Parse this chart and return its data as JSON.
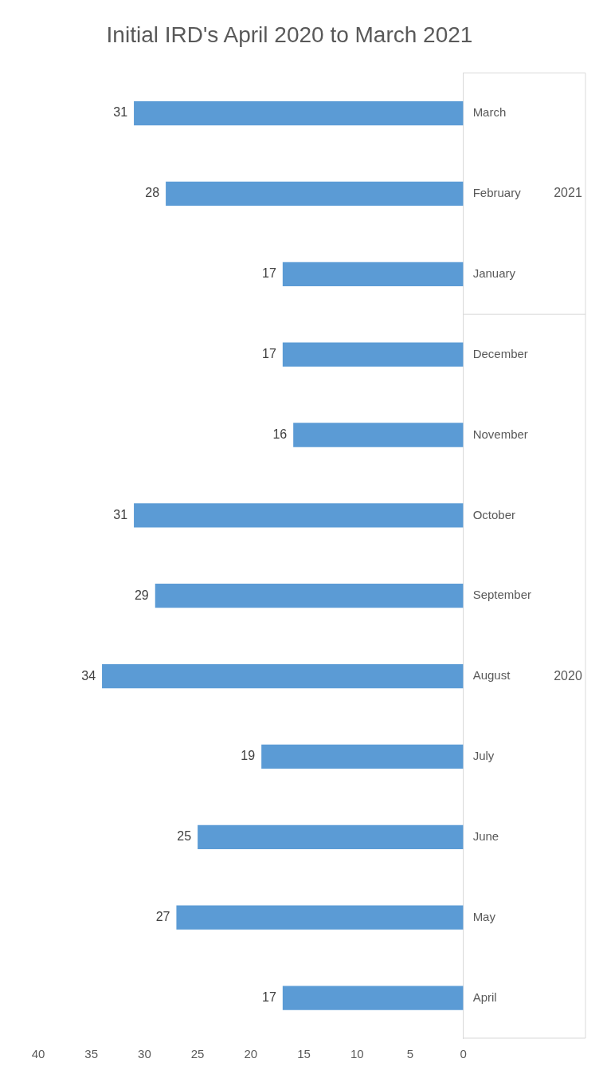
{
  "chart_data": {
    "type": "bar",
    "title": "Initial IRD's April 2020 to March 2021",
    "orientation": "horizontal",
    "categories": [
      "March",
      "February",
      "January",
      "December",
      "November",
      "October",
      "September",
      "August",
      "July",
      "June",
      "May",
      "April"
    ],
    "values": [
      31,
      28,
      17,
      17,
      16,
      31,
      29,
      34,
      19,
      25,
      27,
      17
    ],
    "color": "#5b9bd5",
    "xlim": [
      40,
      0
    ],
    "xticks": [
      40,
      35,
      30,
      25,
      20,
      15,
      10,
      5,
      0
    ],
    "grid": false,
    "data_labels": true,
    "annotations": [
      "2021",
      "2020"
    ]
  }
}
